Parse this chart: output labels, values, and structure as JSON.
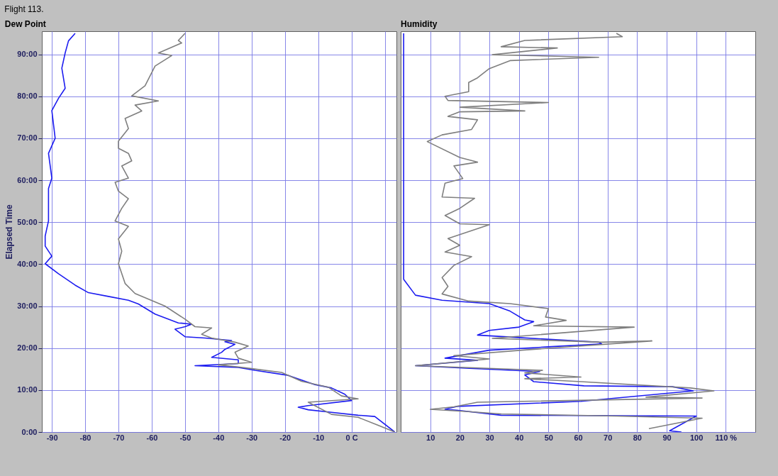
{
  "chart_data": [
    {
      "type": "line",
      "title": "Flight 113.",
      "subtitle": "Dew Point",
      "ylabel": "Elapsed Time",
      "orientation": "horizontal",
      "grid": true,
      "xlim": [
        -93,
        13.5
      ],
      "xticks": [
        -90,
        -80,
        -70,
        -60,
        -50,
        -40,
        -30,
        -20,
        -10,
        {
          "value": 0,
          "label": "0 C"
        },
        {
          "value": 10,
          "label": null
        }
      ],
      "ylim": [
        0,
        95.5
      ],
      "yticks": [
        {
          "value": 0,
          "label": "0:00"
        },
        {
          "value": 10,
          "label": "10:00"
        },
        {
          "value": 20,
          "label": "20:00"
        },
        {
          "value": 30,
          "label": "30:00"
        },
        {
          "value": 40,
          "label": "40:00"
        },
        {
          "value": 50,
          "label": "50:00"
        },
        {
          "value": 60,
          "label": "60:00"
        },
        {
          "value": 70,
          "label": "70:00"
        },
        {
          "value": 80,
          "label": "80:00"
        },
        {
          "value": 90,
          "label": "90:00"
        }
      ],
      "series": [
        {
          "color": "#1c1cf0",
          "x": [
            0,
            3.7,
            4.0,
            4.7,
            5.3,
            5.9,
            6.3,
            7.5,
            9,
            10.5,
            11.3,
            13.5,
            14.7,
            15.4,
            15.8,
            16.3,
            17.2,
            17.8,
            19,
            19.7,
            20.9,
            21.5,
            21.8,
            22.4,
            22.7,
            23.9,
            24.5,
            25.1,
            25.7,
            26,
            28.1,
            30.5,
            31.4,
            32.3,
            33.2,
            35,
            37.7,
            40.1,
            41.9,
            44.3,
            46.7,
            50.3,
            55,
            58,
            60.5,
            66.4,
            70,
            76.6,
            79.5,
            81.9,
            86.7,
            90.3,
            93.2,
            95
          ],
          "values": [
            13,
            7,
            2,
            -6,
            -13,
            -16,
            -13,
            0,
            -2,
            -6,
            -11,
            -19,
            -29,
            -34,
            -47,
            -34,
            -34,
            -42,
            -39,
            -38,
            -35,
            -38,
            -36,
            -44,
            -50,
            -52,
            -53,
            -50,
            -48,
            -52,
            -59,
            -64,
            -67,
            -73,
            -79,
            -83,
            -88,
            -92,
            -90,
            -92,
            -92,
            -91,
            -91,
            -91,
            -90,
            -91,
            -89,
            -90,
            -88,
            -86,
            -87,
            -86,
            -85,
            -83
          ]
        },
        {
          "color": "#7f7f7f",
          "x": [
            0,
            1.6,
            3.5,
            4.2,
            7.1,
            7.9,
            8.6,
            10.7,
            12.1,
            14.2,
            15.1,
            15.5,
            16,
            16.6,
            17.6,
            19,
            20.5,
            21.4,
            22.4,
            23.3,
            24.8,
            25.1,
            26.9,
            30,
            33,
            35.4,
            40.1,
            43.1,
            46,
            49,
            50.3,
            53.3,
            55.6,
            57.4,
            59.5,
            60.5,
            63.4,
            64.6,
            66.4,
            67.6,
            69.3,
            72.3,
            74.7,
            76.5,
            77.9,
            78.9,
            80.1,
            82.5,
            87.2,
            89.7,
            90.3,
            92.7,
            93.3,
            95
          ],
          "values": [
            13,
            8,
            2,
            -6,
            -13,
            2,
            -3,
            -7,
            -15,
            -21,
            -30,
            -34,
            -40,
            -30,
            -34,
            -35,
            -31,
            -35,
            -42,
            -45,
            -42,
            -47,
            -50,
            -56,
            -65,
            -68,
            -70,
            -69,
            -70,
            -67,
            -71,
            -69,
            -67,
            -70,
            -71,
            -67,
            -69,
            -66,
            -67,
            -70,
            -70,
            -67,
            -68,
            -63,
            -65,
            -58,
            -66,
            -62,
            -59,
            -54,
            -58,
            -51,
            -52,
            -50
          ]
        }
      ]
    },
    {
      "type": "line",
      "title": "Humidity",
      "orientation": "horizontal",
      "grid": true,
      "tick_labels": "x",
      "xlim": [
        0,
        120
      ],
      "xticks": [
        10,
        20,
        30,
        40,
        50,
        60,
        70,
        80,
        90,
        100,
        {
          "value": 110,
          "label": "110 %"
        }
      ],
      "ylim": [
        0,
        95.5
      ],
      "yticks": [
        {
          "value": 0,
          "label": null
        },
        {
          "value": 10,
          "label": null
        },
        {
          "value": 20,
          "label": null
        },
        {
          "value": 30,
          "label": null
        },
        {
          "value": 40,
          "label": null
        },
        {
          "value": 50,
          "label": null
        },
        {
          "value": 60,
          "label": null
        },
        {
          "value": 70,
          "label": null
        },
        {
          "value": 80,
          "label": null
        },
        {
          "value": 90,
          "label": null
        }
      ],
      "series": [
        {
          "color": "#1c1cf0",
          "x": [
            0,
            0.3,
            3.8,
            4.0,
            5.2,
            5.4,
            6.1,
            7.3,
            9.8,
            10.8,
            11,
            12,
            13.6,
            14.4,
            15.2,
            15.8,
            17.1,
            17.6,
            19.5,
            20.3,
            21,
            21.4,
            22.5,
            23.1,
            24.2,
            25,
            26.3,
            26.7,
            28.8,
            30.6,
            31.4,
            32.6,
            36.4,
            40,
            95
          ],
          "values": [
            95,
            91,
            100,
            34,
            19,
            15,
            19,
            61,
            99,
            92,
            62,
            45,
            42,
            47,
            22,
            5,
            26,
            15,
            30,
            50,
            68,
            67,
            40,
            26,
            30,
            40,
            45,
            42,
            37,
            30,
            14,
            5,
            1,
            1,
            1
          ]
        },
        {
          "color": "#7f7f7f",
          "x": [
            0.8,
            3.3,
            3.8,
            4.3,
            4.9,
            5.4,
            6,
            7.1,
            8.1,
            8.3,
            9.8,
            10.5,
            12,
            12.7,
            13.1,
            14.1,
            14.7,
            15.8,
            17.4,
            18.2,
            19.5,
            21.7,
            21.4,
            22.3,
            25,
            25.3,
            26.6,
            27.4,
            29.4,
            30.6,
            31.2,
            32.9,
            34.7,
            36.8,
            39.7,
            41.8,
            42.9,
            44.5,
            46.1,
            49.4,
            49.6,
            51.6,
            53.3,
            55.7,
            56,
            59.3,
            60.4,
            63.4,
            64.3,
            65.4,
            69.2,
            70.8,
            72.1,
            74.4,
            75.2,
            76.3,
            76.5,
            77.4,
            78.5,
            79,
            80,
            81.1,
            83.3,
            84.4,
            86.6,
            88.5,
            89.3,
            89.9,
            91.5,
            91.8,
            93.3,
            94.2,
            95
          ],
          "values": [
            84,
            102,
            73,
            34,
            22,
            10,
            18,
            26,
            102,
            83,
            106,
            98,
            61,
            42,
            61,
            42,
            48,
            5,
            30,
            18,
            41,
            85,
            68,
            31,
            79,
            45,
            56,
            49,
            50,
            37,
            23,
            14,
            16,
            14,
            18,
            24,
            15,
            20,
            16,
            30,
            20,
            15,
            20,
            25,
            14,
            15,
            21,
            18,
            26,
            20,
            9,
            14,
            24,
            26,
            16,
            20,
            42,
            20,
            50,
            16,
            15,
            23,
            23,
            26,
            30,
            37,
            67,
            31,
            53,
            34,
            42,
            75,
            73
          ]
        }
      ]
    }
  ]
}
